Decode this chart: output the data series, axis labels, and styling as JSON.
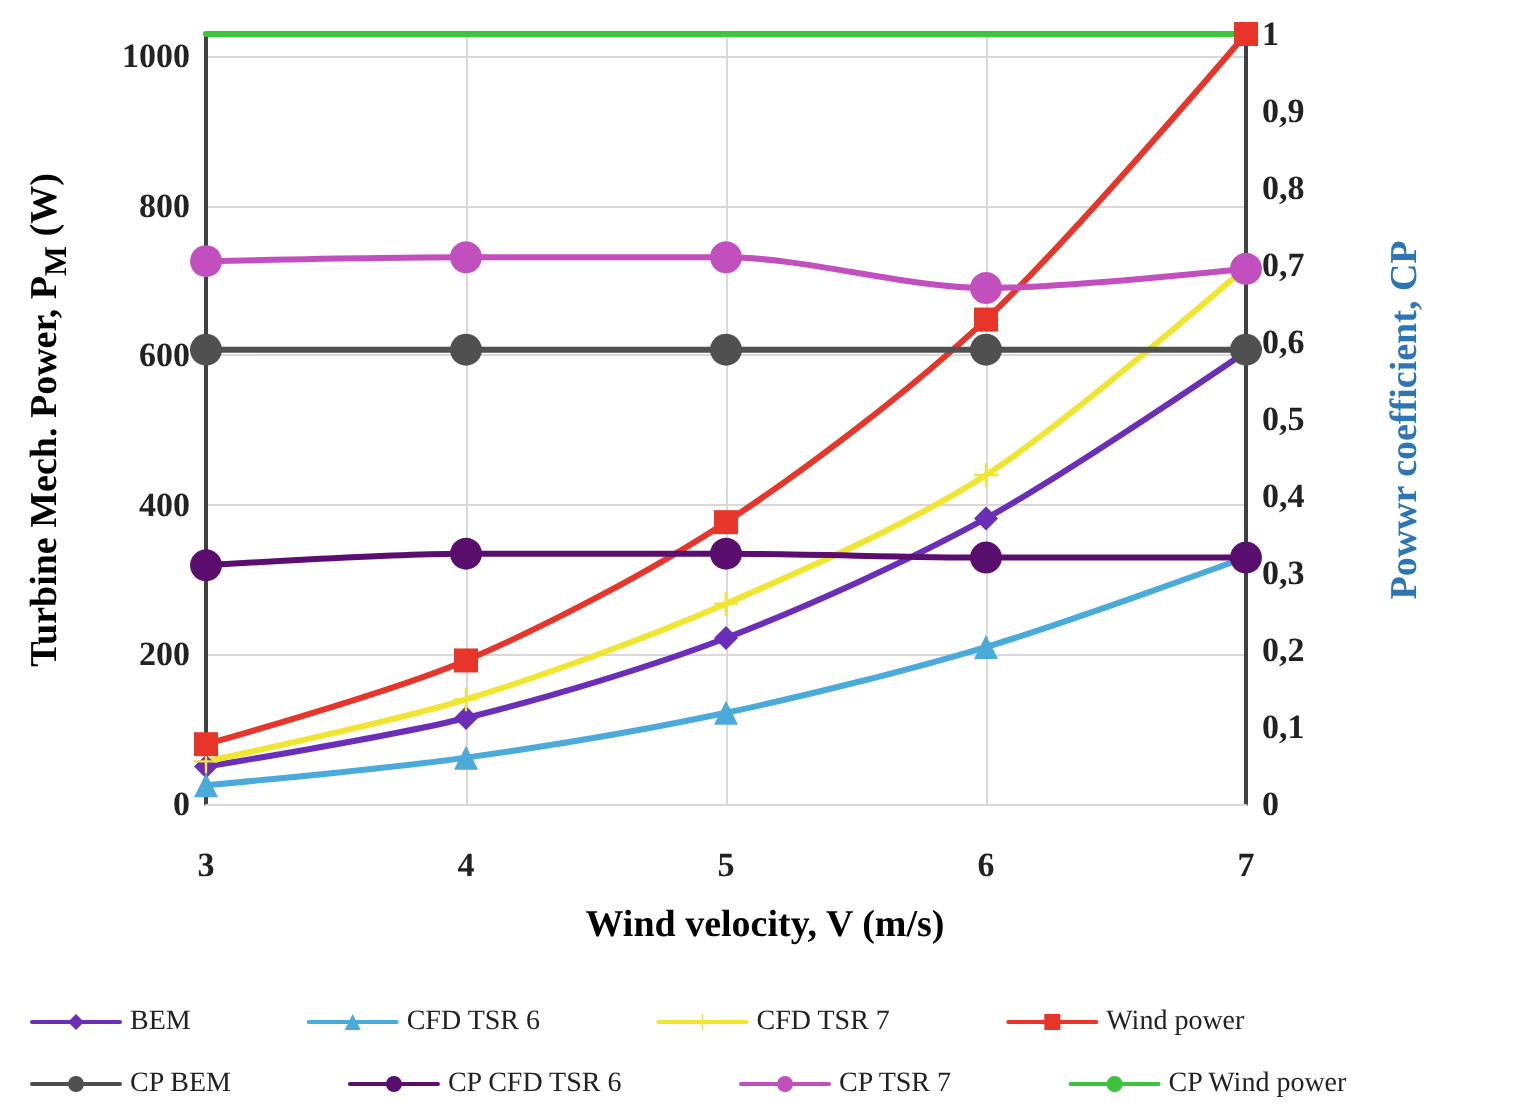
{
  "chart_data": {
    "type": "line",
    "xlabel": "Wind velocity, V (m/s)",
    "ylabel": "Turbine Mech. Power, P$_{M}$ (W)",
    "y2label": "Powwr coefficient, CP",
    "x": [
      3,
      4,
      5,
      6,
      7
    ],
    "xlim": [
      3,
      7
    ],
    "xticks": [
      3,
      4,
      5,
      6,
      7
    ],
    "ylim": [
      0,
      1030
    ],
    "yticks": [
      0,
      200,
      400,
      600,
      800,
      1000
    ],
    "y2lim": [
      0,
      1
    ],
    "y2ticks": [
      0,
      {
        "value": 0.1,
        "label": "0,1"
      },
      {
        "value": 0.2,
        "label": "0,2"
      },
      {
        "value": 0.3,
        "label": "0,3"
      },
      {
        "value": 0.4,
        "label": "0,4"
      },
      {
        "value": 0.5,
        "label": "0,5"
      },
      {
        "value": 0.6,
        "label": "0,6"
      },
      {
        "value": 0.7,
        "label": "0,7"
      },
      {
        "value": 0.8,
        "label": "0,8"
      },
      {
        "value": 0.9,
        "label": "0,9"
      },
      1
    ],
    "grid": true,
    "legend": "bottom",
    "series": [
      {
        "name": "BEM",
        "color": "#6a2eb8",
        "marker": "diamond",
        "values": [
          50,
          115,
          222,
          382,
          605
        ]
      },
      {
        "name": "CFD TSR 6",
        "color": "#4aabdb",
        "marker": "triangle",
        "values": [
          25,
          62,
          122,
          210,
          330
        ]
      },
      {
        "name": "CFD TSR 7",
        "color": "#f0e632",
        "marker": "cross",
        "values": [
          57,
          140,
          268,
          440,
          718
        ]
      },
      {
        "name": "Wind power",
        "color": "#e8352a",
        "marker": "square",
        "values": [
          80,
          192,
          377,
          648,
          1030
        ]
      },
      {
        "name": "CP BEM",
        "color": "#505050",
        "marker": "circle",
        "axis": "y2",
        "values": [
          0.59,
          0.59,
          0.59,
          0.59,
          0.59
        ]
      },
      {
        "name": "CP CFD TSR 6",
        "color": "#5a0f6e",
        "marker": "circle",
        "axis": "y2",
        "values": [
          0.31,
          0.325,
          0.325,
          0.32,
          0.32
        ]
      },
      {
        "name": "CP TSR 7",
        "color": "#c150be",
        "marker": "circle",
        "axis": "y2",
        "values": [
          0.705,
          0.71,
          0.71,
          0.67,
          0.695
        ]
      },
      {
        "name": "CP Wind power",
        "color": "#3cc43c",
        "marker": "none",
        "axis": "y2",
        "values": [
          1,
          1,
          1,
          1,
          1
        ]
      }
    ]
  }
}
